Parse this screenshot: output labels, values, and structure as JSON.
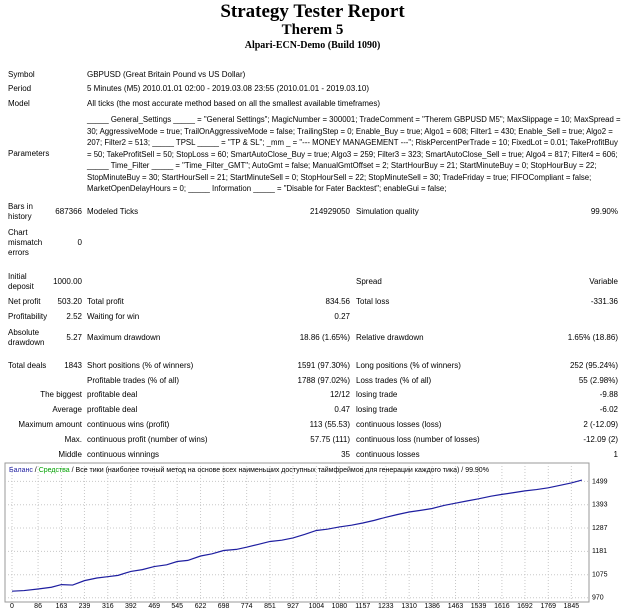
{
  "header": {
    "title": "Strategy Tester Report",
    "subtitle": "Therem 5",
    "server": "Alpari-ECN-Demo (Build 1090)"
  },
  "info_rows": [
    [
      "Symbol",
      "GBPUSD (Great Britain Pound vs US Dollar)"
    ],
    [
      "Period",
      "5 Minutes (M5) 2010.01.01 02:00 - 2019.03.08 23:55 (2010.01.01 - 2019.03.10)"
    ],
    [
      "Model",
      "All ticks (the most accurate method based on all the smallest available timeframes)"
    ],
    [
      "Parameters",
      "_____ General_Settings _____ = \"General Settings\"; MagicNumber = 300001; TradeComment = \"Therem GBPUSD M5\"; MaxSlippage = 10; MaxSpread = 30; AggressiveMode = true; TrailOnAggressiveMode = false; TrailingStep = 0; Enable_Buy = true; Algo1 = 608; Filter1 = 430; Enable_Sell = true; Algo2 = 207; Filter2 = 513; _____ TPSL _____ = \"TP & SL\"; _mm _ = \"--- MONEY MANAGEMENT ---\"; RiskPercentPerTrade = 10; FixedLot = 0.01; TakeProfitBuy = 50; TakeProfitSell = 50; StopLoss = 60; SmartAutoClose_Buy = true; Algo3 = 259; Filter3 = 323; SmartAutoClose_Sell = true; Algo4 = 817; Filter4 = 606; _____ Time_Filter _____ = \"Time_Filter_GMT\"; AutoGmt = false; ManualGmtOffset = 2; StartHourBuy = 21; StartMinuteBuy = 0; StopHourBuy = 22; StopMinuteBuy = 30; StartHourSell = 21; StartMinuteSell = 0; StopHourSell = 22; StopMinuteSell = 30; TradeFriday = true; FIFOCompliant = false; MarketOpenDelayHours = 0; _____ Information _____ = \"Disable for Fater Backtest\"; enableGui = false;"
    ]
  ],
  "stats_rows": [
    [
      "Bars in history",
      "687366",
      "Modeled Ticks",
      "214929050",
      "Simulation quality",
      "99.90%"
    ],
    [
      "Chart mismatch errors",
      "0"
    ],
    [
      "Initial deposit",
      "1000.00",
      "Spread",
      "Variable"
    ],
    [
      "Net profit",
      "503.20",
      "Total profit",
      "834.56",
      "Total loss",
      "-331.36"
    ],
    [
      "Profitability",
      "2.52",
      "Waiting for win",
      "0.27"
    ],
    [
      "Absolute drawdown",
      "5.27",
      "Maximum drawdown",
      "18.86 (1.65%)",
      "Relative drawdown",
      "1.65% (18.86)"
    ],
    [
      "Total deals",
      "1843",
      "Short positions (% of winners)",
      "1591 (97.30%)",
      "Long positions (% of winners)",
      "252 (95.24%)"
    ],
    [
      "Profitable trades (% of all)",
      "1788 (97.02%)",
      "Loss trades (% of all)",
      "55 (2.98%)"
    ],
    [
      "The biggest",
      "profitable deal",
      "12/12",
      "losing trade",
      "-9.88"
    ],
    [
      "Average",
      "profitable deal",
      "0.47",
      "losing trade",
      "-6.02"
    ],
    [
      "Maximum amount",
      "continuous wins (profit)",
      "113 (55.53)",
      "continuous losses (loss)",
      "2 (-12.09)"
    ],
    [
      "Max.",
      "continuous profit (number of wins)",
      "57.75 (111)",
      "continuous loss (number of losses)",
      "-12.09 (2)"
    ],
    [
      "Middle",
      "continuous winnings",
      "35",
      "continuous losses",
      "1"
    ]
  ],
  "chart_data": {
    "type": "line",
    "legend_separator": " / ",
    "legend_extra": [
      {
        "text": "Средства",
        "color": "#00a000"
      },
      {
        "text": "Все тики (наиболее точный метод на основе всех наименьших доступных таймфреймов для генерации каждого тика)",
        "color": "#000000"
      },
      {
        "text": "99.90%",
        "color": "#000000"
      }
    ],
    "x": [
      0,
      40,
      86,
      130,
      163,
      200,
      239,
      280,
      316,
      350,
      392,
      430,
      469,
      510,
      545,
      580,
      622,
      660,
      698,
      740,
      774,
      810,
      851,
      890,
      927,
      965,
      1004,
      1040,
      1080,
      1120,
      1157,
      1195,
      1233,
      1270,
      1310,
      1350,
      1386,
      1425,
      1463,
      1500,
      1539,
      1580,
      1616,
      1655,
      1692,
      1730,
      1769,
      1810,
      1845,
      1880
    ],
    "series": [
      {
        "name": "Баланс",
        "color": "#1e1ea0",
        "values": [
          1000,
          1003,
          1010,
          1018,
          1030,
          1028,
          1048,
          1060,
          1066,
          1072,
          1090,
          1098,
          1112,
          1120,
          1135,
          1140,
          1160,
          1170,
          1185,
          1190,
          1200,
          1212,
          1226,
          1232,
          1242,
          1258,
          1276,
          1282,
          1292,
          1300,
          1310,
          1322,
          1336,
          1348,
          1360,
          1368,
          1376,
          1390,
          1400,
          1410,
          1420,
          1432,
          1440,
          1448,
          1456,
          1462,
          1470,
          1482,
          1492,
          1505
        ]
      }
    ],
    "xlim": [
      0,
      1900
    ],
    "ylim": [
      960,
      1560
    ],
    "xticks": [
      0,
      86,
      163,
      239,
      316,
      392,
      469,
      545,
      622,
      698,
      774,
      851,
      927,
      1004,
      1080,
      1157,
      1233,
      1310,
      1386,
      1463,
      1539,
      1616,
      1692,
      1769,
      1845
    ],
    "yticks": [
      970,
      1075,
      1181,
      1287,
      1393,
      1499
    ],
    "grid": true
  }
}
